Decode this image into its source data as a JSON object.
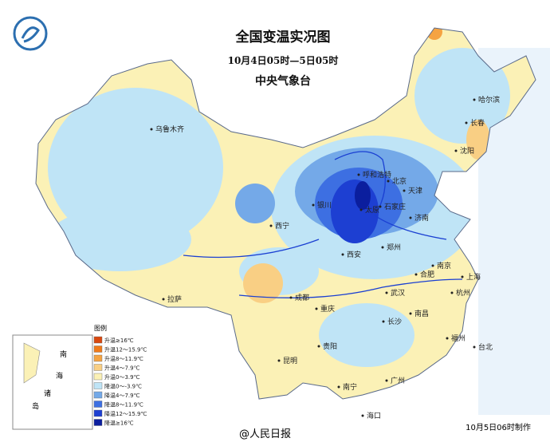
{
  "header": {
    "title": "全国变温实况图",
    "subtitle": "10月4日05时—5日05时",
    "issuer": "中央气象台"
  },
  "legend": {
    "title": "图例",
    "items": [
      {
        "label": "升温≥16℃",
        "color": "#d9480f"
      },
      {
        "label": "升温12～15.9℃",
        "color": "#f07a1a"
      },
      {
        "label": "升温8～11.9℃",
        "color": "#f5a342"
      },
      {
        "label": "升温4～7.9℃",
        "color": "#f9cf84"
      },
      {
        "label": "升温0～3.9℃",
        "color": "#fbf1b6"
      },
      {
        "label": "降温0～-3.9℃",
        "color": "#bfe4f6"
      },
      {
        "label": "降温4～7.9℃",
        "color": "#74a9e8"
      },
      {
        "label": "降温8～11.9℃",
        "color": "#3d6fe2"
      },
      {
        "label": "降温12～15.9℃",
        "color": "#1d3fd2"
      },
      {
        "label": "降温≥16℃",
        "color": "#0b1e9e"
      }
    ]
  },
  "inset": {
    "labels": [
      "南",
      "海",
      "诸",
      "岛"
    ]
  },
  "cities": [
    "乌鲁木齐",
    "拉萨",
    "西宁",
    "银川",
    "呼和浩特",
    "北京",
    "天津",
    "石家庄",
    "太原",
    "济南",
    "郑州",
    "西安",
    "成都",
    "重庆",
    "武汉",
    "合肥",
    "南京",
    "上海",
    "杭州",
    "南昌",
    "长沙",
    "贵阳",
    "昆明",
    "南宁",
    "广州",
    "福州",
    "台北",
    "海口",
    "哈尔滨",
    "长春",
    "沈阳"
  ],
  "footer": {
    "made": "10月5日06时制作",
    "watermark": "@人民日报"
  }
}
